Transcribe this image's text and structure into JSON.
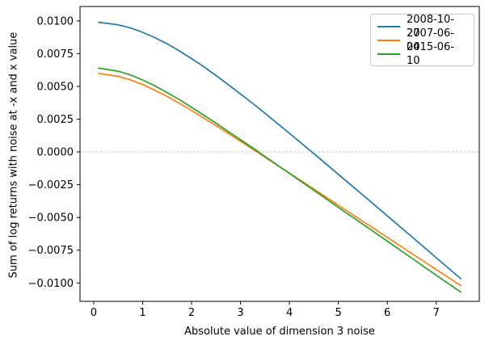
{
  "chart_data": {
    "type": "line",
    "title": "",
    "xlabel": "Absolute value of dimension 3 noise",
    "ylabel": "Sum of log returns with noise at -x and x value",
    "xlim": [
      -0.28,
      7.88
    ],
    "ylim": [
      -0.0114,
      0.0111
    ],
    "xticks": [
      0,
      1,
      2,
      3,
      4,
      5,
      6,
      7
    ],
    "xtick_labels": [
      "0",
      "1",
      "2",
      "3",
      "4",
      "5",
      "6",
      "7"
    ],
    "yticks": [
      0.01,
      0.0075,
      0.005,
      0.0025,
      0.0,
      -0.0025,
      -0.005,
      -0.0075,
      -0.01
    ],
    "ytick_labels": [
      "0.0100",
      "0.0075",
      "0.0050",
      "0.0025",
      "0.0000",
      "−0.0025",
      "−0.0050",
      "−0.0075",
      "−0.0100"
    ],
    "grid": false,
    "zero_line": {
      "y": 0,
      "style": "dashed",
      "color": "#c4c4c4"
    },
    "legend": {
      "position": "upper right",
      "border_color": "#cccccc"
    },
    "x": [
      0.1,
      0.5,
      0.75,
      1.0,
      1.25,
      1.5,
      1.75,
      2.0,
      2.25,
      2.5,
      2.75,
      3.0,
      3.25,
      3.5,
      4.0,
      4.5,
      5.0,
      5.5,
      6.0,
      6.5,
      7.0,
      7.5
    ],
    "series": [
      {
        "name": "2008-10-27",
        "color": "#1f77b4",
        "values": [
          0.00989,
          0.0097,
          0.00946,
          0.00913,
          0.00872,
          0.00825,
          0.00771,
          0.00712,
          0.0065,
          0.00583,
          0.00513,
          0.00442,
          0.0037,
          0.00295,
          0.00142,
          -0.00013,
          -0.00171,
          -0.00329,
          -0.00488,
          -0.00647,
          -0.00807,
          -0.00967
        ]
      },
      {
        "name": "2007-06-04",
        "color": "#ff7f0e",
        "values": [
          0.00599,
          0.00577,
          0.0055,
          0.00514,
          0.00471,
          0.00423,
          0.00372,
          0.00316,
          0.00259,
          0.00201,
          0.00141,
          0.00082,
          0.00021,
          -0.0004,
          -0.00162,
          -0.00284,
          -0.00407,
          -0.00529,
          -0.00652,
          -0.00775,
          -0.00898,
          -0.0102
        ]
      },
      {
        "name": "2015-06-10",
        "color": "#2ca02c",
        "values": [
          0.00639,
          0.00616,
          0.00587,
          0.00549,
          0.00504,
          0.00453,
          0.00399,
          0.0034,
          0.0028,
          0.00219,
          0.00156,
          0.00093,
          0.00031,
          -0.00035,
          -0.00164,
          -0.00293,
          -0.00423,
          -0.00552,
          -0.00681,
          -0.00811,
          -0.00941,
          -0.0107
        ]
      }
    ]
  }
}
